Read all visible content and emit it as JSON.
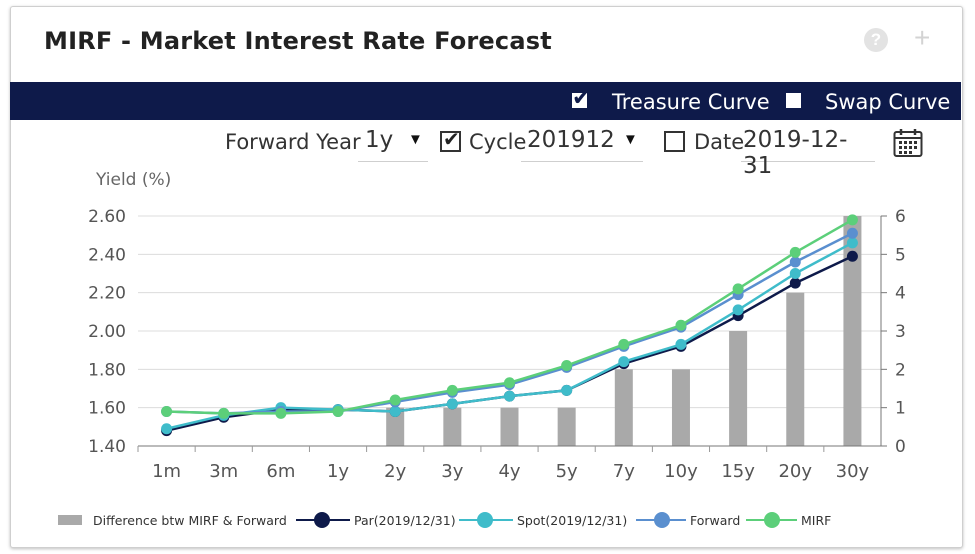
{
  "header": {
    "title": "MIRF - Market Interest Rate Forecast",
    "help_glyph": "?",
    "add_glyph": "+"
  },
  "band": {
    "treasure_label": "Treasure Curve",
    "treasure_checked": true,
    "swap_label": "Swap Curve",
    "swap_checked": false
  },
  "controls": {
    "forward_year_label": "Forward Year",
    "forward_year_value": "1y",
    "cycle_label": "Cycle",
    "cycle_checked": true,
    "cycle_value": "201912",
    "date_label": "Date",
    "date_checked": false,
    "date_value": "2019-12-31"
  },
  "chart_data": {
    "type": "line",
    "ylabel": "Yield (%)",
    "categories": [
      "1m",
      "3m",
      "6m",
      "1y",
      "2y",
      "3y",
      "4y",
      "5y",
      "7y",
      "10y",
      "15y",
      "20y",
      "30y"
    ],
    "ylim": [
      1.4,
      2.6
    ],
    "yticks": [
      "1.40",
      "1.60",
      "1.80",
      "2.00",
      "2.20",
      "2.40",
      "2.60"
    ],
    "y2lim": [
      0,
      6
    ],
    "y2ticks": [
      "0",
      "1",
      "2",
      "3",
      "4",
      "5",
      "6"
    ],
    "grid": true,
    "legend_position": "bottom",
    "bars": {
      "name": "Difference btw MIRF & Forward",
      "color": "#a9a9a9",
      "values": [
        0,
        0,
        0,
        0,
        1,
        1,
        1,
        1,
        2,
        2,
        3,
        4,
        6
      ]
    },
    "series": [
      {
        "name": "Par(2019/12/31)",
        "color": "#0e1a4a",
        "values": [
          1.48,
          1.55,
          1.59,
          1.59,
          1.58,
          1.62,
          1.66,
          1.69,
          1.83,
          1.92,
          2.08,
          2.25,
          2.39
        ]
      },
      {
        "name": "Spot(2019/12/31)",
        "color": "#3fbcca",
        "values": [
          1.49,
          1.56,
          1.6,
          1.59,
          1.58,
          1.62,
          1.66,
          1.69,
          1.84,
          1.93,
          2.11,
          2.3,
          2.46
        ]
      },
      {
        "name": "Forward",
        "color": "#5a8fcf",
        "values": [
          1.58,
          1.57,
          1.58,
          1.58,
          1.63,
          1.68,
          1.72,
          1.81,
          1.92,
          2.02,
          2.19,
          2.36,
          2.51
        ]
      },
      {
        "name": "MIRF",
        "color": "#5ccf7a",
        "values": [
          1.58,
          1.57,
          1.57,
          1.58,
          1.64,
          1.69,
          1.73,
          1.82,
          1.93,
          2.03,
          2.22,
          2.41,
          2.58
        ]
      }
    ]
  }
}
